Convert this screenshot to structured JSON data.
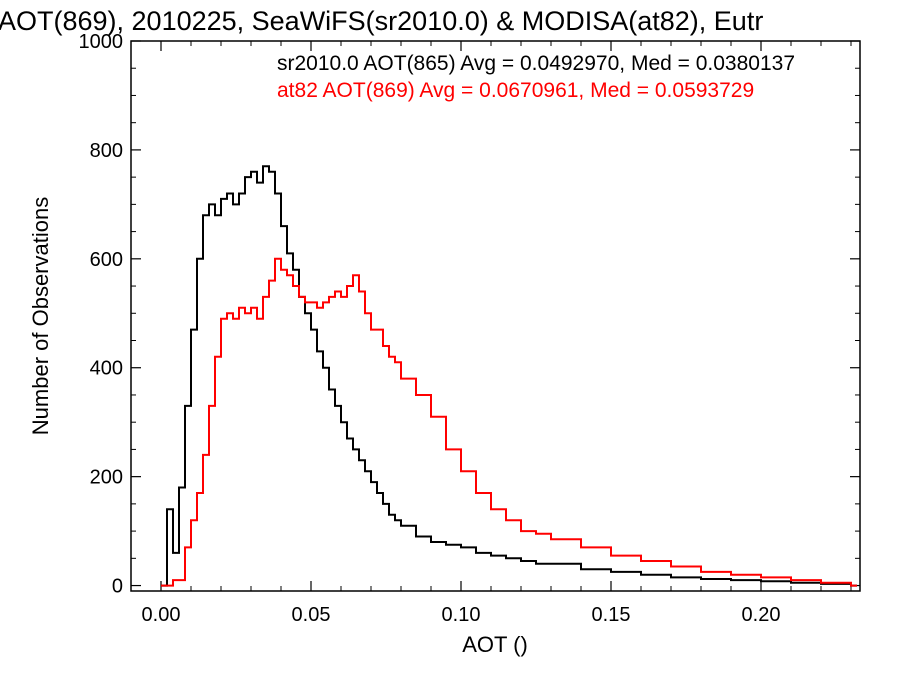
{
  "chart_data": {
    "type": "line",
    "title": "AOT(869), 2010225, SeaWiFS(sr2010.0) & MODISA(at82), Eutr",
    "xlabel": "AOT ()",
    "ylabel": "Number of Observations",
    "xlim": [
      -0.01,
      0.233
    ],
    "ylim": [
      -10,
      1000
    ],
    "xticks": [
      0.0,
      0.05,
      0.1,
      0.15,
      0.2
    ],
    "xtick_labels": [
      "0.00",
      "0.05",
      "0.10",
      "0.15",
      "0.20"
    ],
    "yticks": [
      0,
      200,
      400,
      600,
      800,
      1000
    ],
    "ytick_labels": [
      "0",
      "200",
      "400",
      "600",
      "800",
      "1000"
    ],
    "grid": false,
    "legend_position": "top-right",
    "series": [
      {
        "name": "sr2010.0 AOT(865) Avg = 0.0492970, Med = 0.0380137",
        "color": "#000000",
        "x": [
          0.0,
          0.002,
          0.004,
          0.006,
          0.008,
          0.01,
          0.012,
          0.014,
          0.016,
          0.018,
          0.02,
          0.022,
          0.024,
          0.026,
          0.028,
          0.03,
          0.032,
          0.034,
          0.036,
          0.038,
          0.04,
          0.042,
          0.044,
          0.046,
          0.048,
          0.05,
          0.052,
          0.054,
          0.056,
          0.058,
          0.06,
          0.062,
          0.064,
          0.066,
          0.068,
          0.07,
          0.072,
          0.074,
          0.076,
          0.078,
          0.08,
          0.085,
          0.09,
          0.095,
          0.1,
          0.105,
          0.11,
          0.115,
          0.12,
          0.125,
          0.13,
          0.14,
          0.15,
          0.16,
          0.17,
          0.18,
          0.19,
          0.2,
          0.21,
          0.22,
          0.23
        ],
        "y": [
          0,
          140,
          60,
          180,
          330,
          470,
          600,
          680,
          700,
          680,
          710,
          720,
          700,
          720,
          750,
          760,
          740,
          770,
          760,
          720,
          660,
          610,
          580,
          530,
          500,
          470,
          430,
          400,
          360,
          330,
          300,
          270,
          250,
          230,
          210,
          190,
          170,
          150,
          130,
          120,
          110,
          90,
          80,
          75,
          70,
          60,
          55,
          50,
          45,
          40,
          40,
          30,
          25,
          20,
          15,
          12,
          10,
          8,
          5,
          3,
          0
        ]
      },
      {
        "name": "at82 AOT(869) Avg = 0.0670961, Med = 0.0593729",
        "color": "#ff0000",
        "x": [
          0.0,
          0.004,
          0.008,
          0.01,
          0.012,
          0.014,
          0.016,
          0.018,
          0.02,
          0.022,
          0.024,
          0.026,
          0.028,
          0.03,
          0.032,
          0.034,
          0.036,
          0.038,
          0.04,
          0.042,
          0.044,
          0.046,
          0.048,
          0.05,
          0.052,
          0.054,
          0.056,
          0.058,
          0.06,
          0.062,
          0.064,
          0.066,
          0.068,
          0.07,
          0.072,
          0.074,
          0.076,
          0.078,
          0.08,
          0.085,
          0.09,
          0.095,
          0.1,
          0.105,
          0.11,
          0.115,
          0.12,
          0.125,
          0.13,
          0.14,
          0.15,
          0.16,
          0.17,
          0.18,
          0.19,
          0.2,
          0.21,
          0.22,
          0.23
        ],
        "y": [
          0,
          10,
          70,
          120,
          170,
          240,
          330,
          420,
          490,
          500,
          490,
          510,
          500,
          510,
          490,
          530,
          560,
          600,
          580,
          570,
          550,
          530,
          520,
          520,
          510,
          520,
          530,
          540,
          530,
          550,
          570,
          540,
          500,
          470,
          470,
          440,
          420,
          410,
          380,
          350,
          310,
          250,
          210,
          170,
          140,
          120,
          100,
          95,
          85,
          70,
          55,
          45,
          35,
          25,
          20,
          15,
          10,
          5,
          0
        ]
      }
    ]
  }
}
